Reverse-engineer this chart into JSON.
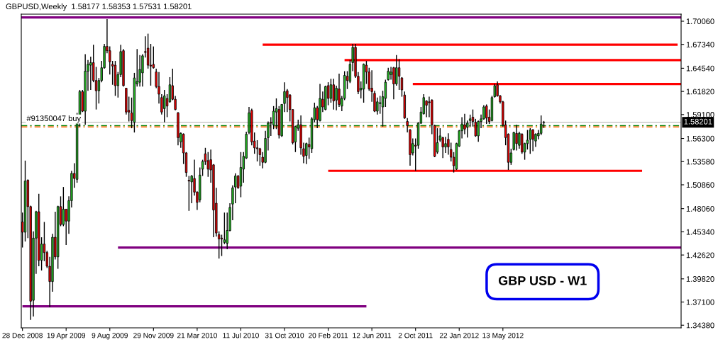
{
  "chart_data": {
    "type": "candlestick",
    "title": "GBPUSD,Weekly  1.58177 1.58353 1.57531 1.58201",
    "annotations": [
      "GBP USD - W1"
    ],
    "x": [
      "2008-12-28",
      "2009-01-04",
      "2009-01-11",
      "2009-01-18",
      "2009-01-25",
      "2009-02-01",
      "2009-02-08",
      "2009-02-15",
      "2009-02-22",
      "2009-03-01",
      "2009-03-08",
      "2009-03-15",
      "2009-03-22",
      "2009-03-29",
      "2009-04-05",
      "2009-04-12",
      "2009-04-19",
      "2009-04-26",
      "2009-05-03",
      "2009-05-10",
      "2009-05-17",
      "2009-05-24",
      "2009-05-31",
      "2009-06-07",
      "2009-06-14",
      "2009-06-21",
      "2009-06-28",
      "2009-07-05",
      "2009-07-12",
      "2009-07-19",
      "2009-07-26",
      "2009-08-02",
      "2009-08-09",
      "2009-08-16",
      "2009-08-23",
      "2009-08-30",
      "2009-09-06",
      "2009-09-13",
      "2009-09-20",
      "2009-09-27",
      "2009-10-04",
      "2009-10-11",
      "2009-10-18",
      "2009-10-25",
      "2009-11-01",
      "2009-11-08",
      "2009-11-15",
      "2009-11-22",
      "2009-11-29",
      "2009-12-06",
      "2009-12-13",
      "2009-12-20",
      "2009-12-27",
      "2010-01-03",
      "2010-01-10",
      "2010-01-17",
      "2010-01-24",
      "2010-01-31",
      "2010-02-07",
      "2010-02-14",
      "2010-02-21",
      "2010-02-28",
      "2010-03-07",
      "2010-03-14",
      "2010-03-21",
      "2010-03-28",
      "2010-04-04",
      "2010-04-11",
      "2010-04-18",
      "2010-04-25",
      "2010-05-02",
      "2010-05-09",
      "2010-05-16",
      "2010-05-23",
      "2010-05-30",
      "2010-06-06",
      "2010-06-13",
      "2010-06-20",
      "2010-06-27",
      "2010-07-04",
      "2010-07-11",
      "2010-07-18",
      "2010-07-25",
      "2010-08-01",
      "2010-08-08",
      "2010-08-15",
      "2010-08-22",
      "2010-08-29",
      "2010-09-05",
      "2010-09-12",
      "2010-09-19",
      "2010-09-26",
      "2010-10-03",
      "2010-10-10",
      "2010-10-17",
      "2010-10-24",
      "2010-10-31",
      "2010-11-07",
      "2010-11-14",
      "2010-11-21",
      "2010-11-28",
      "2010-12-05",
      "2010-12-12",
      "2010-12-19",
      "2010-12-26",
      "2011-01-02",
      "2011-01-09",
      "2011-01-16",
      "2011-01-23",
      "2011-01-30",
      "2011-02-06",
      "2011-02-13",
      "2011-02-20",
      "2011-02-27",
      "2011-03-06",
      "2011-03-13",
      "2011-03-20",
      "2011-03-27",
      "2011-04-03",
      "2011-04-10",
      "2011-04-17",
      "2011-04-24",
      "2011-05-01",
      "2011-05-08",
      "2011-05-15",
      "2011-05-22",
      "2011-05-29",
      "2011-06-05",
      "2011-06-12",
      "2011-06-19",
      "2011-06-26",
      "2011-07-03",
      "2011-07-10",
      "2011-07-17",
      "2011-07-24",
      "2011-07-31",
      "2011-08-07",
      "2011-08-14",
      "2011-08-21",
      "2011-08-28",
      "2011-09-04",
      "2011-09-11",
      "2011-09-18",
      "2011-09-25",
      "2011-10-02",
      "2011-10-09",
      "2011-10-16",
      "2011-10-23",
      "2011-10-30",
      "2011-11-06",
      "2011-11-13",
      "2011-11-20",
      "2011-11-27",
      "2011-12-04",
      "2011-12-11",
      "2011-12-18",
      "2011-12-25",
      "2012-01-01",
      "2012-01-08",
      "2012-01-15",
      "2012-01-22",
      "2012-01-29",
      "2012-02-05",
      "2012-02-12",
      "2012-02-19",
      "2012-02-26",
      "2012-03-04",
      "2012-03-11",
      "2012-03-18",
      "2012-03-25",
      "2012-04-01",
      "2012-04-08",
      "2012-04-15",
      "2012-04-22",
      "2012-04-29",
      "2012-05-06",
      "2012-05-13",
      "2012-05-20",
      "2012-05-27",
      "2012-06-03",
      "2012-06-10",
      "2012-06-17",
      "2012-06-24",
      "2012-07-01",
      "2012-07-08",
      "2012-07-15",
      "2012-07-22",
      "2012-07-29",
      "2012-08-05",
      "2012-08-12",
      "2012-08-19",
      "2012-08-26"
    ],
    "ohlc": [
      [
        1.465,
        1.476,
        1.435,
        1.453
      ],
      [
        1.453,
        1.537,
        1.442,
        1.513
      ],
      [
        1.514,
        1.515,
        1.446,
        1.483
      ],
      [
        1.483,
        1.484,
        1.35,
        1.372
      ],
      [
        1.373,
        1.454,
        1.354,
        1.446
      ],
      [
        1.446,
        1.478,
        1.404,
        1.477
      ],
      [
        1.477,
        1.498,
        1.413,
        1.42
      ],
      [
        1.42,
        1.447,
        1.408,
        1.439
      ],
      [
        1.439,
        1.465,
        1.419,
        1.429
      ],
      [
        1.429,
        1.431,
        1.411,
        1.413
      ],
      [
        1.413,
        1.424,
        1.365,
        1.395
      ],
      [
        1.395,
        1.451,
        1.383,
        1.447
      ],
      [
        1.447,
        1.477,
        1.421,
        1.424
      ],
      [
        1.424,
        1.484,
        1.41,
        1.483
      ],
      [
        1.483,
        1.495,
        1.46,
        1.462
      ],
      [
        1.462,
        1.506,
        1.46,
        1.48
      ],
      [
        1.48,
        1.48,
        1.438,
        1.466
      ],
      [
        1.466,
        1.495,
        1.451,
        1.49
      ],
      [
        1.49,
        1.525,
        1.482,
        1.522
      ],
      [
        1.522,
        1.534,
        1.505,
        1.516
      ],
      [
        1.515,
        1.593,
        1.511,
        1.59
      ],
      [
        1.59,
        1.62,
        1.577,
        1.618
      ],
      [
        1.618,
        1.62,
        1.594,
        1.595
      ],
      [
        1.595,
        1.662,
        1.579,
        1.642
      ],
      [
        1.642,
        1.655,
        1.619,
        1.65
      ],
      [
        1.649,
        1.659,
        1.62,
        1.652
      ],
      [
        1.652,
        1.673,
        1.629,
        1.631
      ],
      [
        1.631,
        1.647,
        1.597,
        1.619
      ],
      [
        1.619,
        1.634,
        1.604,
        1.631
      ],
      [
        1.631,
        1.654,
        1.629,
        1.646
      ],
      [
        1.646,
        1.674,
        1.645,
        1.671
      ],
      [
        1.671,
        1.703,
        1.663,
        1.666
      ],
      [
        1.666,
        1.671,
        1.638,
        1.653
      ],
      [
        1.65,
        1.654,
        1.626,
        1.648
      ],
      [
        1.649,
        1.654,
        1.613,
        1.625
      ],
      [
        1.625,
        1.641,
        1.611,
        1.638
      ],
      [
        1.638,
        1.673,
        1.635,
        1.665
      ],
      [
        1.666,
        1.668,
        1.624,
        1.625
      ],
      [
        1.622,
        1.622,
        1.591,
        1.594
      ],
      [
        1.596,
        1.612,
        1.583,
        1.594
      ],
      [
        1.593,
        1.611,
        1.575,
        1.584
      ],
      [
        1.582,
        1.64,
        1.57,
        1.634
      ],
      [
        1.627,
        1.668,
        1.624,
        1.63
      ],
      [
        1.629,
        1.661,
        1.624,
        1.644
      ],
      [
        1.64,
        1.662,
        1.624,
        1.66
      ],
      [
        1.665,
        1.683,
        1.658,
        1.664
      ],
      [
        1.669,
        1.686,
        1.645,
        1.649
      ],
      [
        1.649,
        1.674,
        1.625,
        1.648
      ],
      [
        1.65,
        1.671,
        1.645,
        1.646
      ],
      [
        1.641,
        1.645,
        1.622,
        1.624
      ],
      [
        1.624,
        1.641,
        1.604,
        1.615
      ],
      [
        1.611,
        1.615,
        1.591,
        1.594
      ],
      [
        1.598,
        1.62,
        1.582,
        1.613
      ],
      [
        1.61,
        1.615,
        1.588,
        1.601
      ],
      [
        1.606,
        1.635,
        1.605,
        1.626
      ],
      [
        1.625,
        1.645,
        1.608,
        1.609
      ],
      [
        1.609,
        1.613,
        1.596,
        1.597
      ],
      [
        1.593,
        1.594,
        1.555,
        1.564
      ],
      [
        1.559,
        1.57,
        1.552,
        1.569
      ],
      [
        1.568,
        1.569,
        1.533,
        1.546
      ],
      [
        1.546,
        1.547,
        1.518,
        1.523
      ],
      [
        1.514,
        1.519,
        1.478,
        1.513
      ],
      [
        1.512,
        1.52,
        1.487,
        1.519
      ],
      [
        1.516,
        1.538,
        1.496,
        1.5
      ],
      [
        1.5,
        1.501,
        1.479,
        1.488
      ],
      [
        1.491,
        1.529,
        1.488,
        1.52
      ],
      [
        1.527,
        1.538,
        1.519,
        1.536
      ],
      [
        1.545,
        1.552,
        1.532,
        1.536
      ],
      [
        1.537,
        1.547,
        1.518,
        1.527
      ],
      [
        1.538,
        1.55,
        1.511,
        1.526
      ],
      [
        1.532,
        1.533,
        1.447,
        1.479
      ],
      [
        1.487,
        1.505,
        1.448,
        1.452
      ],
      [
        1.45,
        1.454,
        1.422,
        1.445
      ],
      [
        1.446,
        1.45,
        1.425,
        1.445
      ],
      [
        1.441,
        1.476,
        1.439,
        1.444
      ],
      [
        1.44,
        1.476,
        1.433,
        1.455
      ],
      [
        1.455,
        1.487,
        1.454,
        1.482
      ],
      [
        1.486,
        1.508,
        1.467,
        1.505
      ],
      [
        1.506,
        1.522,
        1.487,
        1.519
      ],
      [
        1.519,
        1.52,
        1.504,
        1.505
      ],
      [
        1.507,
        1.547,
        1.494,
        1.529
      ],
      [
        1.527,
        1.547,
        1.511,
        1.542
      ],
      [
        1.54,
        1.571,
        1.539,
        1.568
      ],
      [
        1.57,
        1.6,
        1.568,
        1.593
      ],
      [
        1.596,
        1.598,
        1.555,
        1.559
      ],
      [
        1.56,
        1.57,
        1.545,
        1.552
      ],
      [
        1.552,
        1.561,
        1.536,
        1.551
      ],
      [
        1.551,
        1.552,
        1.531,
        1.544
      ],
      [
        1.541,
        1.547,
        1.528,
        1.535
      ],
      [
        1.535,
        1.572,
        1.534,
        1.563
      ],
      [
        1.564,
        1.583,
        1.549,
        1.581
      ],
      [
        1.582,
        1.588,
        1.566,
        1.581
      ],
      [
        1.579,
        1.601,
        1.574,
        1.595
      ],
      [
        1.594,
        1.61,
        1.574,
        1.598
      ],
      [
        1.597,
        1.601,
        1.563,
        1.567
      ],
      [
        1.566,
        1.603,
        1.565,
        1.603
      ],
      [
        1.604,
        1.629,
        1.594,
        1.618
      ],
      [
        1.619,
        1.621,
        1.594,
        1.611
      ],
      [
        1.614,
        1.615,
        1.583,
        1.597
      ],
      [
        1.597,
        1.597,
        1.556,
        1.558
      ],
      [
        1.559,
        1.578,
        1.547,
        1.577
      ],
      [
        1.575,
        1.585,
        1.572,
        1.579
      ],
      [
        1.579,
        1.59,
        1.544,
        1.552
      ],
      [
        1.551,
        1.558,
        1.534,
        1.542
      ],
      [
        1.543,
        1.558,
        1.533,
        1.557
      ],
      [
        1.556,
        1.564,
        1.539,
        1.553
      ],
      [
        1.551,
        1.588,
        1.546,
        1.586
      ],
      [
        1.585,
        1.605,
        1.582,
        1.599
      ],
      [
        1.599,
        1.601,
        1.575,
        1.585
      ],
      [
        1.584,
        1.627,
        1.583,
        1.61
      ],
      [
        1.609,
        1.618,
        1.594,
        1.6
      ],
      [
        1.597,
        1.625,
        1.596,
        1.624
      ],
      [
        1.625,
        1.629,
        1.602,
        1.61
      ],
      [
        1.61,
        1.633,
        1.605,
        1.626
      ],
      [
        1.626,
        1.633,
        1.597,
        1.607
      ],
      [
        1.608,
        1.625,
        1.596,
        1.622
      ],
      [
        1.621,
        1.639,
        1.6,
        1.603
      ],
      [
        1.601,
        1.613,
        1.595,
        1.61
      ],
      [
        1.61,
        1.642,
        1.608,
        1.637
      ],
      [
        1.636,
        1.642,
        1.621,
        1.631
      ],
      [
        1.63,
        1.655,
        1.628,
        1.65
      ],
      [
        1.652,
        1.674,
        1.642,
        1.67
      ],
      [
        1.67,
        1.674,
        1.634,
        1.636
      ],
      [
        1.636,
        1.641,
        1.615,
        1.618
      ],
      [
        1.62,
        1.63,
        1.61,
        1.622
      ],
      [
        1.621,
        1.651,
        1.605,
        1.65
      ],
      [
        1.649,
        1.654,
        1.627,
        1.641
      ],
      [
        1.641,
        1.646,
        1.619,
        1.621
      ],
      [
        1.622,
        1.643,
        1.606,
        1.618
      ],
      [
        1.616,
        1.619,
        1.594,
        1.595
      ],
      [
        1.595,
        1.611,
        1.591,
        1.606
      ],
      [
        1.604,
        1.613,
        1.592,
        1.605
      ],
      [
        1.6,
        1.619,
        1.577,
        1.612
      ],
      [
        1.61,
        1.632,
        1.6,
        1.629
      ],
      [
        1.632,
        1.646,
        1.631,
        1.642
      ],
      [
        1.638,
        1.647,
        1.632,
        1.641
      ],
      [
        1.646,
        1.647,
        1.609,
        1.627
      ],
      [
        1.627,
        1.661,
        1.625,
        1.646
      ],
      [
        1.646,
        1.656,
        1.62,
        1.636
      ],
      [
        1.634,
        1.635,
        1.612,
        1.62
      ],
      [
        1.614,
        1.618,
        1.586,
        1.587
      ],
      [
        1.583,
        1.587,
        1.57,
        1.578
      ],
      [
        1.573,
        1.574,
        1.531,
        1.544
      ],
      [
        1.546,
        1.563,
        1.543,
        1.557
      ],
      [
        1.555,
        1.563,
        1.525,
        1.554
      ],
      [
        1.555,
        1.582,
        1.551,
        1.581
      ],
      [
        1.581,
        1.6,
        1.58,
        1.594
      ],
      [
        1.592,
        1.615,
        1.591,
        1.611
      ],
      [
        1.607,
        1.608,
        1.588,
        1.602
      ],
      [
        1.606,
        1.612,
        1.588,
        1.605
      ],
      [
        1.608,
        1.609,
        1.568,
        1.579
      ],
      [
        1.578,
        1.579,
        1.541,
        1.542
      ],
      [
        1.547,
        1.575,
        1.545,
        1.558
      ],
      [
        1.561,
        1.575,
        1.559,
        1.566
      ],
      [
        1.564,
        1.565,
        1.54,
        1.553
      ],
      [
        1.553,
        1.565,
        1.546,
        1.557
      ],
      [
        1.562,
        1.569,
        1.544,
        1.553
      ],
      [
        1.55,
        1.558,
        1.536,
        1.541
      ],
      [
        1.541,
        1.547,
        1.523,
        1.531
      ],
      [
        1.527,
        1.558,
        1.526,
        1.557
      ],
      [
        1.554,
        1.573,
        1.553,
        1.572
      ],
      [
        1.572,
        1.588,
        1.563,
        1.58
      ],
      [
        1.579,
        1.592,
        1.568,
        1.574
      ],
      [
        1.576,
        1.584,
        1.564,
        1.581
      ],
      [
        1.584,
        1.591,
        1.577,
        1.586
      ],
      [
        1.588,
        1.597,
        1.577,
        1.583
      ],
      [
        1.582,
        1.586,
        1.565,
        1.566
      ],
      [
        1.566,
        1.584,
        1.559,
        1.583
      ],
      [
        1.583,
        1.591,
        1.575,
        1.586
      ],
      [
        1.586,
        1.602,
        1.585,
        1.6
      ],
      [
        1.601,
        1.603,
        1.58,
        1.587
      ],
      [
        1.588,
        1.597,
        1.58,
        1.583
      ],
      [
        1.584,
        1.613,
        1.583,
        1.611
      ],
      [
        1.612,
        1.627,
        1.611,
        1.625
      ],
      [
        1.626,
        1.63,
        1.612,
        1.613
      ],
      [
        1.613,
        1.614,
        1.604,
        1.606
      ],
      [
        1.606,
        1.607,
        1.577,
        1.579
      ],
      [
        1.579,
        1.584,
        1.555,
        1.564
      ],
      [
        1.568,
        1.569,
        1.526,
        1.535
      ],
      [
        1.535,
        1.551,
        1.532,
        1.546
      ],
      [
        1.55,
        1.571,
        1.549,
        1.57
      ],
      [
        1.569,
        1.579,
        1.549,
        1.557
      ],
      [
        1.555,
        1.571,
        1.551,
        1.569
      ],
      [
        1.568,
        1.569,
        1.545,
        1.547
      ],
      [
        1.547,
        1.558,
        1.538,
        1.557
      ],
      [
        1.557,
        1.573,
        1.55,
        1.561
      ],
      [
        1.562,
        1.575,
        1.545,
        1.573
      ],
      [
        1.573,
        1.574,
        1.548,
        1.562
      ],
      [
        1.56,
        1.569,
        1.553,
        1.568
      ],
      [
        1.566,
        1.573,
        1.562,
        1.569
      ],
      [
        1.569,
        1.59,
        1.567,
        1.58
      ],
      [
        1.58177,
        1.58353,
        1.57531,
        1.58201
      ]
    ],
    "colors": [
      "#e60000",
      "#22b422",
      "#e60000",
      "#e60000",
      "#22b422",
      "#22b422",
      "#e60000",
      "#22b422",
      "#e60000",
      "#e60000",
      "#e60000",
      "#22b422",
      "#e60000",
      "#22b422",
      "#e60000",
      "#22b422",
      "#e60000",
      "#22b422",
      "#22b422",
      "#e60000",
      "#22b422",
      "#22b422",
      "#e60000",
      "#22b422",
      "#22b422",
      "#22b422",
      "#e60000",
      "#e60000",
      "#22b422",
      "#22b422",
      "#22b422",
      "#e60000",
      "#e60000",
      "#e60000",
      "#e60000",
      "#22b422",
      "#22b422",
      "#e60000",
      "#e60000",
      "#e60000",
      "#e60000",
      "#22b422",
      "#22b422",
      "#22b422",
      "#22b422",
      "#e60000",
      "#e60000",
      "#e60000",
      "#e60000",
      "#e60000",
      "#e60000",
      "#e60000",
      "#22b422",
      "#e60000",
      "#22b422",
      "#e60000",
      "#e60000",
      "#e60000",
      "#22b422",
      "#e60000",
      "#e60000",
      "#e60000",
      "#22b422",
      "#e60000",
      "#e60000",
      "#22b422",
      "#22b422",
      "#e60000",
      "#e60000",
      "#e60000",
      "#e60000",
      "#e60000",
      "#e60000",
      "#e60000",
      "#22b422",
      "#22b422",
      "#22b422",
      "#22b422",
      "#22b422",
      "#e60000",
      "#22b422",
      "#22b422",
      "#22b422",
      "#22b422",
      "#e60000",
      "#e60000",
      "#e60000",
      "#e60000",
      "#e60000",
      "#22b422",
      "#22b422",
      "#e60000",
      "#22b422",
      "#22b422",
      "#e60000",
      "#22b422",
      "#22b422",
      "#e60000",
      "#e60000",
      "#e60000",
      "#22b422",
      "#22b422",
      "#e60000",
      "#e60000",
      "#22b422",
      "#e60000",
      "#22b422",
      "#22b422",
      "#e60000",
      "#22b422",
      "#e60000",
      "#22b422",
      "#e60000",
      "#22b422",
      "#e60000",
      "#22b422",
      "#e60000",
      "#22b422",
      "#22b422",
      "#e60000",
      "#22b422",
      "#22b422",
      "#e60000",
      "#e60000",
      "#22b422",
      "#22b422",
      "#e60000",
      "#e60000",
      "#e60000",
      "#e60000",
      "#22b422",
      "#22b422",
      "#22b422",
      "#22b422",
      "#22b422",
      "#22b422",
      "#e60000",
      "#22b422",
      "#e60000",
      "#e60000",
      "#e60000",
      "#e60000",
      "#e60000",
      "#22b422",
      "#e60000",
      "#22b422",
      "#22b422",
      "#22b422",
      "#e60000",
      "#e60000",
      "#e60000",
      "#e60000",
      "#22b422",
      "#22b422",
      "#e60000",
      "#22b422",
      "#e60000",
      "#e60000",
      "#e60000",
      "#22b422",
      "#22b422",
      "#22b422",
      "#e60000",
      "#22b422",
      "#22b422",
      "#e60000",
      "#e60000",
      "#22b422",
      "#22b422",
      "#22b422",
      "#e60000",
      "#e60000",
      "#22b422",
      "#22b422",
      "#e60000",
      "#e60000",
      "#e60000",
      "#e60000",
      "#e60000",
      "#22b422",
      "#22b422",
      "#e60000",
      "#22b422",
      "#e60000",
      "#22b422",
      "#22b422",
      "#22b422",
      "#e60000",
      "#22b422",
      "#22b422",
      "#22b422",
      "#22b422"
    ],
    "series": [
      {
        "type": "line",
        "color": "#800080",
        "x": [
          "2009-08-30",
          "2013-08-13"
        ],
        "values": [
          1.435,
          1.435
        ]
      },
      {
        "type": "line",
        "color": "#800080",
        "x": [
          "2008-12-28",
          "2011-05-29"
        ],
        "values": [
          1.366,
          1.366
        ]
      },
      {
        "type": "line",
        "color": "#ff0000",
        "x": [
          "2010-09-05",
          "2013-08-04"
        ],
        "values": [
          1.673,
          1.673
        ]
      },
      {
        "type": "line",
        "color": "#ff0000",
        "x": [
          "2011-04-03",
          "2013-08-13"
        ],
        "values": [
          1.655,
          1.655
        ]
      },
      {
        "type": "line",
        "color": "#ff0000",
        "x": [
          "2011-09-25",
          "2013-08-13"
        ],
        "values": [
          1.627,
          1.627
        ]
      },
      {
        "type": "line",
        "color": "#ff0000",
        "x": [
          "2011-02-20",
          "2013-05-05"
        ],
        "values": [
          1.525,
          1.525
        ]
      }
    ],
    "ref_lines": [
      {
        "axis": "y",
        "value": 1.705,
        "color": "#800080",
        "line_style": "solid"
      },
      {
        "axis": "y",
        "value": 1.58201,
        "label": "1.58201",
        "color": "#c0c0c0",
        "line_style": "solid"
      },
      {
        "axis": "y",
        "value": 1.578,
        "label": "#91350047 buy",
        "color": "#008000",
        "line_style": "dashed"
      },
      {
        "axis": "y",
        "value": 1.5765,
        "color": "#ff6600",
        "line_style": "dashed"
      }
    ],
    "xlim": [
      "2008-12-25",
      "2013-08-13"
    ],
    "xticks": [
      {
        "value": "2008-12-28",
        "label": "28 Dec 2008"
      },
      {
        "value": "2009-04-19",
        "label": "19 Apr 2009"
      },
      {
        "value": "2009-08-09",
        "label": "9 Aug 2009"
      },
      {
        "value": "2009-11-29",
        "label": "29 Nov 2009"
      },
      {
        "value": "2010-03-21",
        "label": "21 Mar 2010"
      },
      {
        "value": "2010-07-11",
        "label": "11 Jul 2010"
      },
      {
        "value": "2010-10-31",
        "label": "31 Oct 2010"
      },
      {
        "value": "2011-02-20",
        "label": "20 Feb 2011"
      },
      {
        "value": "2011-06-12",
        "label": "12 Jun 2011"
      },
      {
        "value": "2011-10-02",
        "label": "2 Oct 2011"
      },
      {
        "value": "2012-01-22",
        "label": "22 Jan 2012"
      },
      {
        "value": "2012-05-13",
        "label": "13 May 2012"
      }
    ],
    "ylim": [
      1.3407,
      1.7089
    ],
    "yticks": [
      {
        "value": 1.3438,
        "label": "1.34380"
      },
      {
        "value": 1.371,
        "label": "1.37100"
      },
      {
        "value": 1.3982,
        "label": "1.39820"
      },
      {
        "value": 1.4262,
        "label": "1.42620"
      },
      {
        "value": 1.4534,
        "label": "1.45340"
      },
      {
        "value": 1.4806,
        "label": "1.48060"
      },
      {
        "value": 1.5086,
        "label": "1.50860"
      },
      {
        "value": 1.5358,
        "label": "1.53580"
      },
      {
        "value": 1.563,
        "label": "1.56300"
      },
      {
        "value": 1.591,
        "label": "1.59100"
      },
      {
        "value": 1.6182,
        "label": "1.61820"
      },
      {
        "value": 1.6454,
        "label": "1.64540"
      },
      {
        "value": 1.6734,
        "label": "1.67340"
      },
      {
        "value": 1.7006,
        "label": "1.70060"
      }
    ],
    "grid": false
  }
}
